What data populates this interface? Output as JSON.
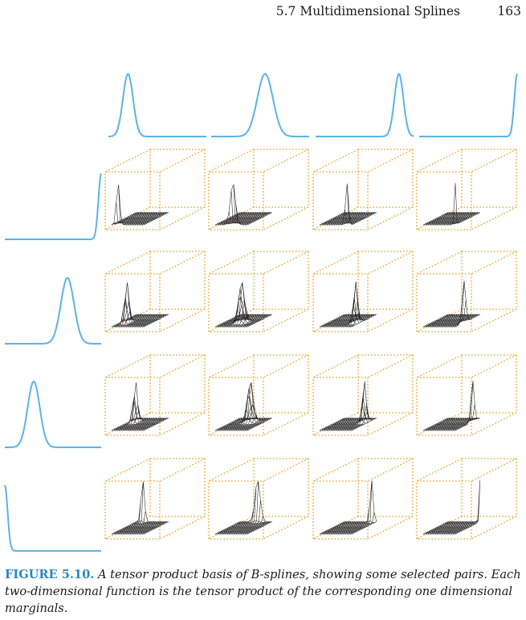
{
  "header": {
    "section": "5.7 Multidimensional Splines",
    "page": "163"
  },
  "figure": {
    "description_shapes": {
      "top_marginals": [
        0.2,
        0.55,
        0.85,
        1.0
      ],
      "left_marginals": [
        1.0,
        0.65,
        0.3,
        0.0
      ]
    },
    "colors": {
      "curve": "#5ab4e5",
      "box": "#e8a020",
      "mesh": "#222222"
    }
  },
  "caption": {
    "label": "FIGURE 5.10.",
    "text": " A tensor product basis of B-splines, showing some selected pairs. Each two-dimensional function is the tensor product of the corresponding one dimensional marginals."
  }
}
